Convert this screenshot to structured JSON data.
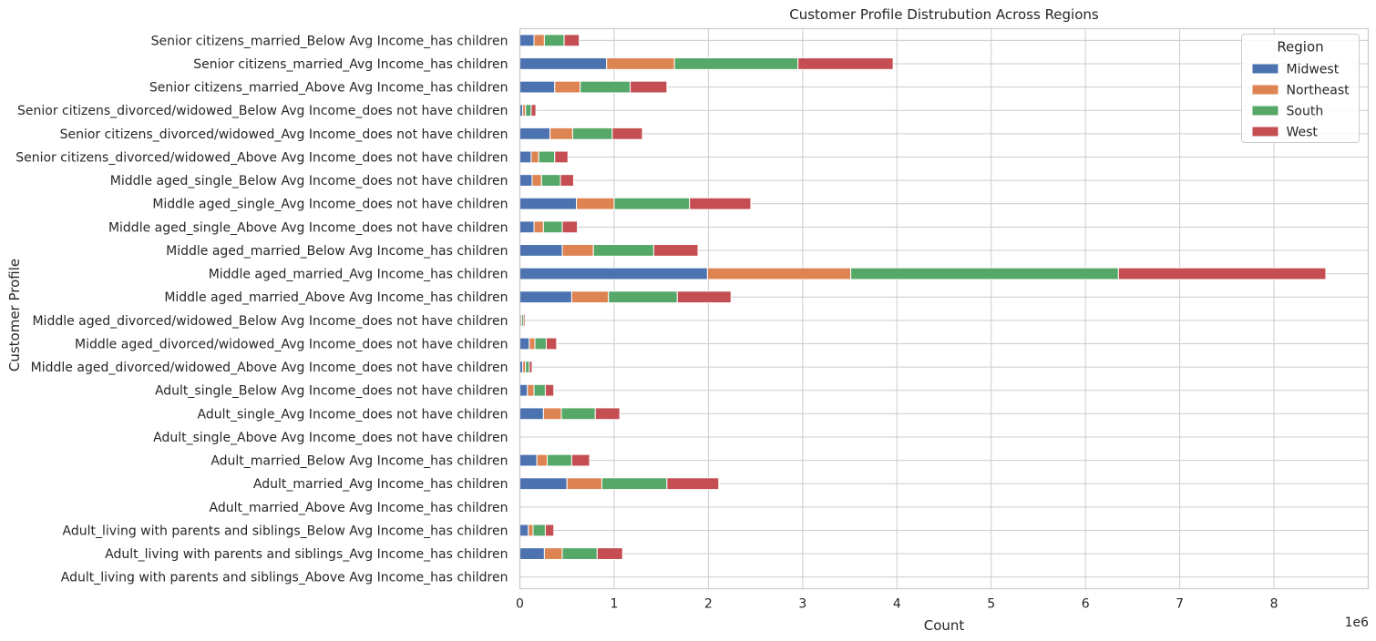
{
  "chart_data": {
    "type": "bar",
    "orientation": "horizontal",
    "stacked": true,
    "title": "Customer Profile Distrubution Across Regions",
    "xlabel": "Count",
    "ylabel": "Customer Profile",
    "x_scale_label": "1e6",
    "xlim": [
      0,
      9000000
    ],
    "x_ticks": [
      0,
      1000000,
      2000000,
      3000000,
      4000000,
      5000000,
      6000000,
      7000000,
      8000000
    ],
    "x_tick_labels": [
      "0",
      "1",
      "2",
      "3",
      "4",
      "5",
      "6",
      "7",
      "8"
    ],
    "grid": true,
    "legend_title": "Region",
    "legend_position": "top-right",
    "categories": [
      "Senior citizens_married_Below Avg Income_has children",
      "Senior citizens_married_Avg Income_has children",
      "Senior citizens_married_Above Avg Income_has children",
      "Senior citizens_divorced/widowed_Below Avg Income_does not have children",
      "Senior citizens_divorced/widowed_Avg Income_does not have children",
      "Senior citizens_divorced/widowed_Above Avg Income_does not have children",
      "Middle aged_single_Below Avg Income_does not have children",
      "Middle aged_single_Avg Income_does not have children",
      "Middle aged_single_Above Avg Income_does not have children",
      "Middle aged_married_Below Avg Income_has children",
      "Middle aged_married_Avg Income_has children",
      "Middle aged_married_Above Avg Income_has children",
      "Middle aged_divorced/widowed_Below Avg Income_does not have children",
      "Middle aged_divorced/widowed_Avg Income_does not have children",
      "Middle aged_divorced/widowed_Above Avg Income_does not have children",
      "Adult_single_Below Avg Income_does not have children",
      "Adult_single_Avg Income_does not have children",
      "Adult_single_Above Avg Income_does not have children",
      "Adult_married_Below Avg Income_has children",
      "Adult_married_Avg Income_has children",
      "Adult_married_Above Avg Income_has children",
      "Adult_living with parents and siblings_Below Avg Income_has children",
      "Adult_living with parents and siblings_Avg Income_has children",
      "Adult_living with parents and siblings_Above Avg Income_has children"
    ],
    "series": [
      {
        "name": "Midwest",
        "color": "#4c72b0",
        "values": [
          150000,
          920000,
          370000,
          30000,
          320000,
          120000,
          130000,
          600000,
          150000,
          450000,
          1990000,
          550000,
          10000,
          100000,
          30000,
          80000,
          250000,
          0,
          180000,
          500000,
          0,
          90000,
          260000,
          0
        ]
      },
      {
        "name": "Northeast",
        "color": "#dd8452",
        "values": [
          110000,
          720000,
          270000,
          30000,
          240000,
          80000,
          100000,
          400000,
          100000,
          330000,
          1520000,
          390000,
          10000,
          60000,
          30000,
          70000,
          190000,
          0,
          110000,
          370000,
          0,
          50000,
          190000,
          0
        ]
      },
      {
        "name": "South",
        "color": "#55a868",
        "values": [
          210000,
          1310000,
          530000,
          60000,
          420000,
          170000,
          200000,
          800000,
          200000,
          640000,
          2840000,
          730000,
          20000,
          120000,
          40000,
          120000,
          360000,
          0,
          260000,
          690000,
          0,
          130000,
          370000,
          0
        ]
      },
      {
        "name": "West",
        "color": "#c44e52",
        "values": [
          160000,
          1010000,
          390000,
          50000,
          320000,
          140000,
          140000,
          650000,
          160000,
          470000,
          2200000,
          570000,
          10000,
          110000,
          30000,
          90000,
          260000,
          0,
          190000,
          550000,
          0,
          90000,
          270000,
          0
        ]
      }
    ]
  }
}
